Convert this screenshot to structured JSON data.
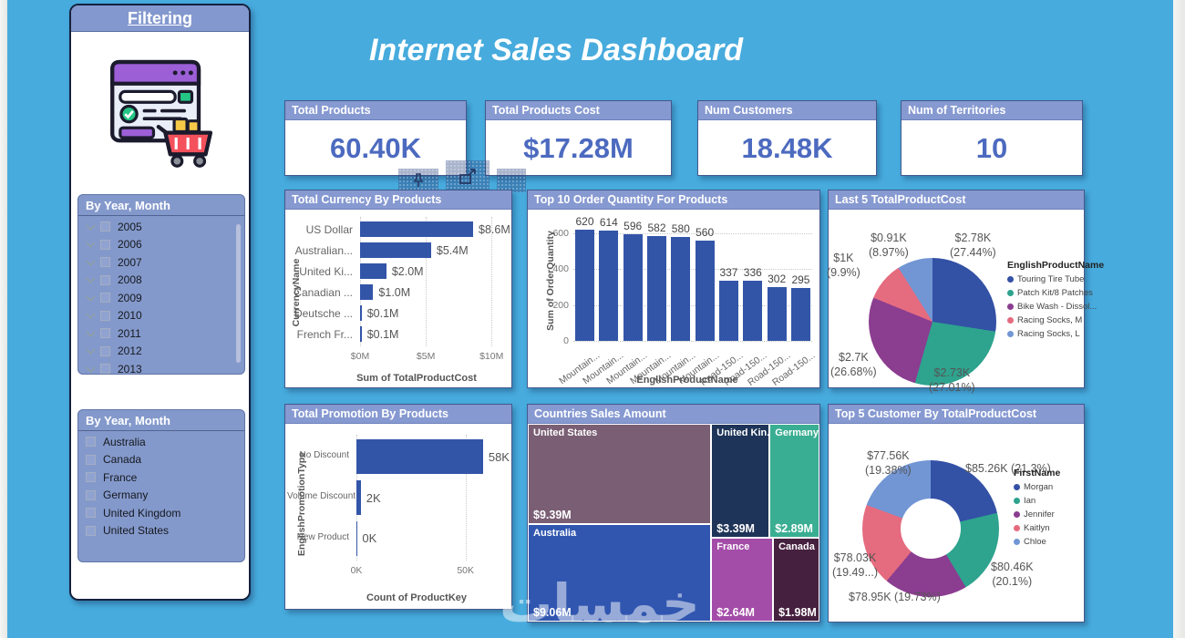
{
  "page": {
    "title": "Internet Sales Dashboard",
    "watermark": "خمسات"
  },
  "filter_panel": {
    "title": "Filtering",
    "year_filter": {
      "title": "By Year, Month",
      "items": [
        "2005",
        "2006",
        "2007",
        "2008",
        "2009",
        "2010",
        "2011",
        "2012",
        "2013"
      ]
    },
    "country_filter": {
      "title": "By Year, Month",
      "items": [
        "Australia",
        "Canada",
        "France",
        "Germany",
        "United Kingdom",
        "United States"
      ]
    }
  },
  "kpis": [
    {
      "label": "Total Products",
      "value": "60.40K"
    },
    {
      "label": "Total Products Cost",
      "value": "$17.28M"
    },
    {
      "label": "Num Customers",
      "value": "18.48K"
    },
    {
      "label": "Num of Territories",
      "value": "10"
    }
  ],
  "colors": {
    "background": "#47ABDD",
    "panel_header": "#8699D1",
    "bar_blue": "#3355A8",
    "kpi_value": "#4C6ABF",
    "palette": [
      "#3351A5",
      "#2EA38E",
      "#8B3D90",
      "#E56B7F",
      "#7296D4"
    ]
  },
  "chart_data": [
    {
      "id": "currency",
      "type": "bar",
      "orientation": "horizontal",
      "title": "Total Currency By Products",
      "ylabel": "CurrencyName",
      "xlabel": "Sum of TotalProductCost",
      "categories": [
        "US Dollar",
        "Australian...",
        "United Ki...",
        "Canadian ...",
        "Deutsche ...",
        "French Fr..."
      ],
      "values": [
        8.6,
        5.4,
        2.0,
        1.0,
        0.12,
        0.12
      ],
      "labels": [
        "$8.6M",
        "$5.4M",
        "$2.0M",
        "$1.0M",
        "$0.1M",
        "$0.1M"
      ],
      "xlim": [
        0,
        10.4
      ],
      "xticks": [
        {
          "v": 0,
          "label": "$0M"
        },
        {
          "v": 5,
          "label": "$5M"
        },
        {
          "v": 10,
          "label": "$10M"
        }
      ],
      "bar_color": "#3355A8",
      "grid": true,
      "legend": "none"
    },
    {
      "id": "top10",
      "type": "bar",
      "orientation": "vertical",
      "title": "Top 10 Order Quantity For Products",
      "ylabel": "Sum of OrderQuantity",
      "xlabel": "EnglishProductName",
      "categories": [
        "Mountain...",
        "Mountain...",
        "Mountain...",
        "Mountain...",
        "Mountain...",
        "Mountain...",
        "Road-150...",
        "Road-150...",
        "Road-150...",
        "Road-150..."
      ],
      "values": [
        620,
        614,
        596,
        582,
        580,
        560,
        337,
        336,
        302,
        295
      ],
      "ylim": [
        0,
        650
      ],
      "yticks": [
        {
          "v": 0,
          "label": "0"
        },
        {
          "v": 200,
          "label": "200"
        },
        {
          "v": 400,
          "label": "400"
        },
        {
          "v": 600,
          "label": "600"
        }
      ],
      "bar_color": "#3355A8",
      "grid": true,
      "legend": "none"
    },
    {
      "id": "last5",
      "type": "pie",
      "title": "Last 5 TotalProductCost",
      "legend_title": "EnglishProductName",
      "legend_position": "right",
      "slices": [
        {
          "name": "Touring Tire Tube",
          "label": "$2.78K",
          "pct": 27.44,
          "pct_label": "(27.44%)",
          "color": "#3351A5"
        },
        {
          "name": "Patch Kit/8 Patches",
          "label": "$2.73K",
          "pct": 27.01,
          "pct_label": "(27.01%)",
          "color": "#2EA38E"
        },
        {
          "name": "Bike Wash - Dissol...",
          "label": "$2.7K",
          "pct": 26.68,
          "pct_label": "(26.68%)",
          "color": "#8B3D90"
        },
        {
          "name": "Racing Socks, M",
          "label": "$1K",
          "pct": 9.9,
          "pct_label": "(9.9%)",
          "color": "#E56B7F"
        },
        {
          "name": "Racing Socks, L",
          "label": "$0.91K",
          "pct": 8.97,
          "pct_label": "(8.97%)",
          "color": "#7296D4"
        }
      ]
    },
    {
      "id": "promotion",
      "type": "bar",
      "orientation": "horizontal",
      "title": "Total Promotion By Products",
      "ylabel": "EnglishPromotionType",
      "xlabel": "Count of ProductKey",
      "categories": [
        "No Discount",
        "Volume Discount",
        "New Product"
      ],
      "values": [
        58,
        2,
        0.15
      ],
      "labels": [
        "58K",
        "2K",
        "0K"
      ],
      "xlim": [
        0,
        66
      ],
      "xticks": [
        {
          "v": 0,
          "label": "0K"
        },
        {
          "v": 50,
          "label": "50K"
        }
      ],
      "bar_color": "#3355A8",
      "grid": true,
      "legend": "none"
    },
    {
      "id": "countries",
      "type": "treemap",
      "title": "Countries Sales Amount",
      "tiles": [
        {
          "name": "United States",
          "value": "$9.39M",
          "color": "#7A5E74",
          "x": 0,
          "y": 0,
          "w": 62.9,
          "h": 50.9
        },
        {
          "name": "Australia",
          "value": "$9.06M",
          "color": "#3156B0",
          "x": 0,
          "y": 50.9,
          "w": 62.9,
          "h": 49.1
        },
        {
          "name": "United Kin...",
          "value": "$3.39M",
          "color": "#1E3458",
          "x": 62.9,
          "y": 0,
          "w": 20.0,
          "h": 57.6
        },
        {
          "name": "Germany",
          "value": "$2.89M",
          "color": "#3AAE92",
          "x": 82.9,
          "y": 0,
          "w": 17.1,
          "h": 57.6
        },
        {
          "name": "France",
          "value": "$2.64M",
          "color": "#A34CA8",
          "x": 62.9,
          "y": 57.6,
          "w": 21.2,
          "h": 42.4
        },
        {
          "name": "Canada",
          "value": "$1.98M",
          "color": "#46203F",
          "x": 84.1,
          "y": 57.6,
          "w": 15.9,
          "h": 42.4
        }
      ]
    },
    {
      "id": "top5",
      "type": "donut",
      "title": "Top 5 Customer By TotalProductCost",
      "legend_title": "FirstName",
      "legend_position": "right",
      "slices": [
        {
          "name": "Morgan",
          "label": "$85.26K",
          "pct": 21.3,
          "pct_label": "(21.3%)",
          "color": "#3351A5"
        },
        {
          "name": "Ian",
          "label": "$80.46K",
          "pct": 20.1,
          "pct_label": "(20.1%)",
          "color": "#2EA38E"
        },
        {
          "name": "Jennifer",
          "label": "$78.95K",
          "pct": 19.73,
          "pct_label": "(19.73%)",
          "color": "#8B3D90"
        },
        {
          "name": "Kaitlyn",
          "label": "$78.03K",
          "pct": 19.49,
          "pct_label": "(19.49...)",
          "color": "#E56B7F"
        },
        {
          "name": "Chloe",
          "label": "$77.56K",
          "pct": 19.38,
          "pct_label": "(19.38%)",
          "color": "#7296D4"
        }
      ]
    }
  ],
  "toolbar_icons": [
    {
      "name": "pin-visual"
    },
    {
      "name": "popout"
    },
    {
      "name": "more-options"
    }
  ]
}
